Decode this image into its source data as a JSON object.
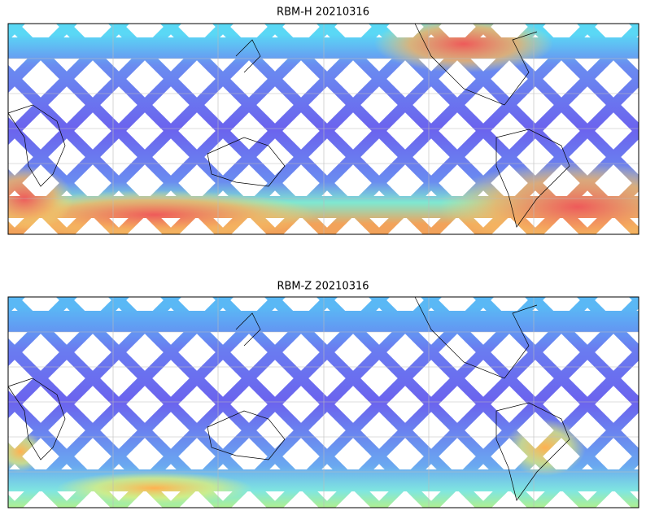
{
  "panels": [
    {
      "title": "RBM-H 20210316"
    },
    {
      "title": "RBM-Z 20210316"
    }
  ]
}
